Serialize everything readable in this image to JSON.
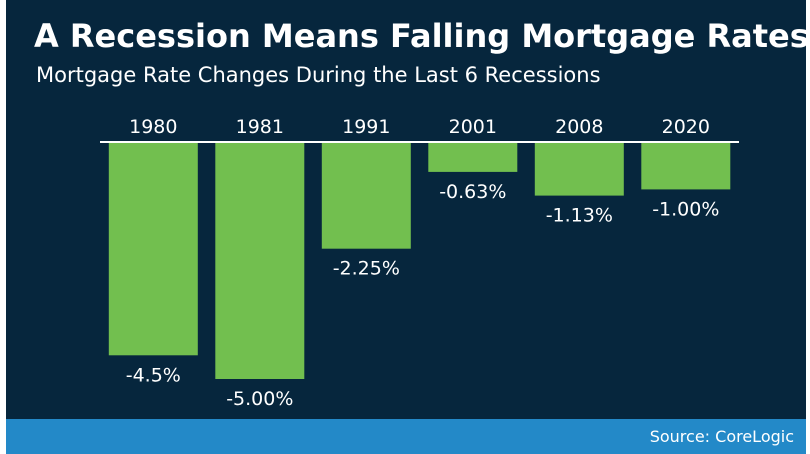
{
  "title": "A Recession Means Falling Mortgage Rates",
  "subtitle": "Mortgage Rate Changes During the Last 6 Recessions",
  "source": "Source: CoreLogic",
  "colors": {
    "background": "#06263d",
    "bar": "#72bf4f",
    "baseline": "#ffffff",
    "footer": "#2389c8",
    "text": "#ffffff"
  },
  "chart_data": {
    "type": "bar",
    "title": "A Recession Means Falling Mortgage Rates",
    "subtitle": "Mortgage Rate Changes During the Last 6 Recessions",
    "categories": [
      "1980",
      "1981",
      "1991",
      "2001",
      "2008",
      "2020"
    ],
    "values": [
      -4.5,
      -5.0,
      -2.25,
      -0.63,
      -1.13,
      -1.0
    ],
    "data_labels": [
      "-4.5%",
      "-5.00%",
      "-2.25%",
      "-0.63%",
      "-1.13%",
      "-1.00%"
    ],
    "xlabel": "",
    "ylabel": "",
    "ylim": [
      -5.0,
      0
    ],
    "grid": false,
    "legend": "none",
    "category_axis": "top"
  }
}
